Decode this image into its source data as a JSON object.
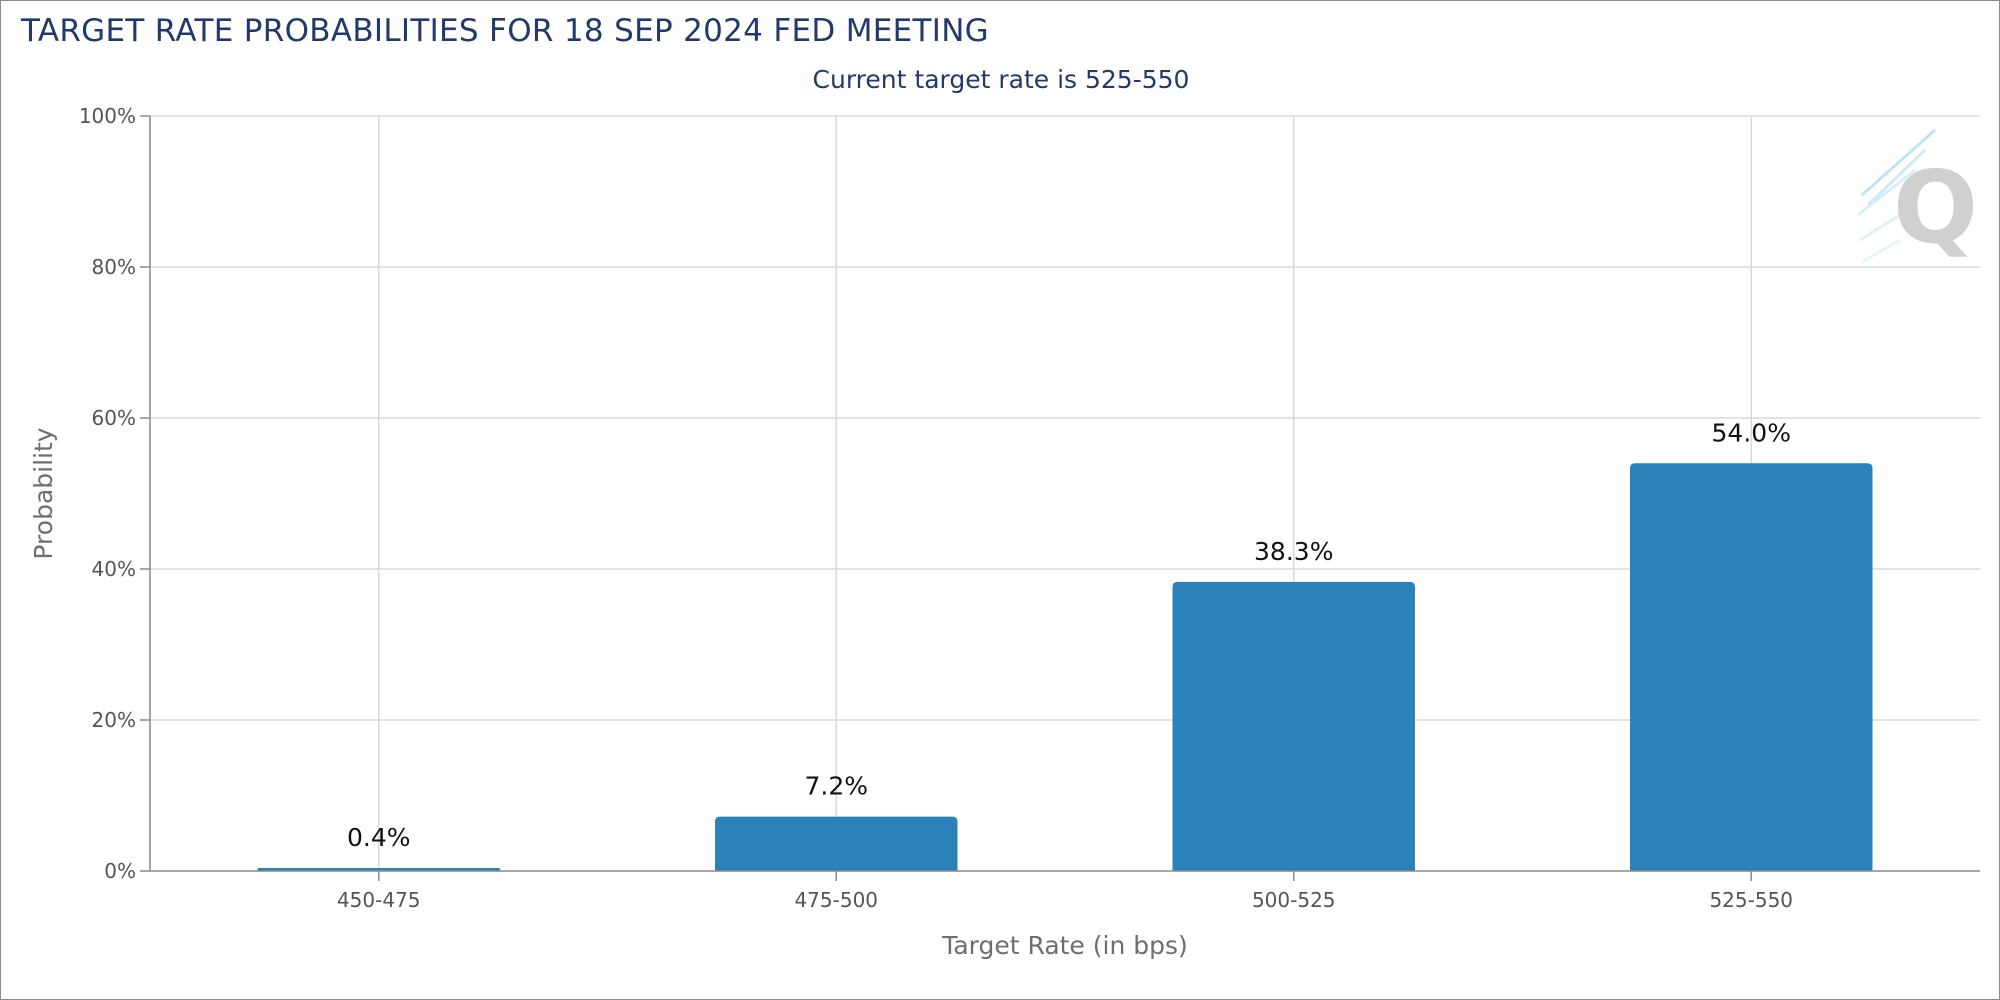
{
  "header": {
    "title": "TARGET RATE PROBABILITIES FOR 18 SEP 2024 FED MEETING",
    "subtitle": "Current target rate is 525-550"
  },
  "colors": {
    "bar": "#2b81b9",
    "title": "#213a6b",
    "grid": "#d9d9d9",
    "axis": "#8a8a8a"
  },
  "watermark": {
    "icon": "q-logo-icon"
  },
  "chart_data": {
    "type": "bar",
    "categories": [
      "450-475",
      "475-500",
      "500-525",
      "525-550"
    ],
    "values": [
      0.4,
      7.2,
      38.3,
      54.0
    ],
    "data_labels": [
      "0.4%",
      "7.2%",
      "38.3%",
      "54.0%"
    ],
    "xlabel": "Target Rate (in bps)",
    "ylabel": "Probability",
    "ylim": [
      0,
      100
    ],
    "yticks": [
      0,
      20,
      40,
      60,
      80,
      100
    ],
    "ytick_labels": [
      "0%",
      "20%",
      "40%",
      "60%",
      "80%",
      "100%"
    ],
    "grid": true,
    "legend": "none"
  }
}
